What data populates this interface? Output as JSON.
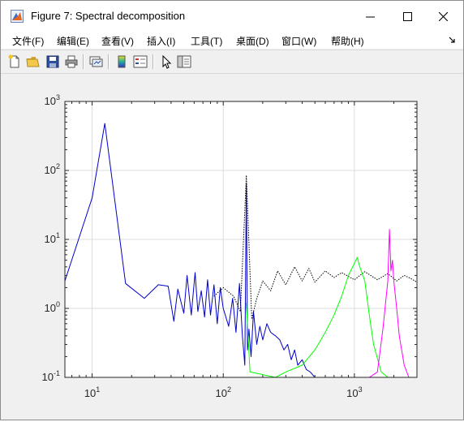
{
  "window": {
    "title": "Figure 7: Spectral decomposition",
    "icon": "matlab-figure-icon",
    "controls": [
      "minimize-icon",
      "maximize-icon",
      "close-icon"
    ]
  },
  "menu": {
    "items": [
      "文件(F)",
      "编辑(E)",
      "查看(V)",
      "插入(I)",
      "工具(T)",
      "桌面(D)",
      "窗口(W)",
      "帮助(H)"
    ]
  },
  "toolbar": {
    "buttons": [
      "new-figure-icon",
      "open-file-icon",
      "save-icon",
      "print-icon",
      "link-plot-icon",
      "insert-colorbar-icon",
      "insert-legend-icon",
      "edit-plot-icon",
      "property-inspector-icon"
    ]
  },
  "chart_data": {
    "type": "line",
    "title": "",
    "xlabel": "",
    "ylabel": "",
    "xscale": "log",
    "yscale": "log",
    "xlim": [
      6.2,
      3000
    ],
    "ylim": [
      0.1,
      1000
    ],
    "grid": true,
    "x_tick_labels": [
      "10^1",
      "10^2",
      "10^3"
    ],
    "y_tick_labels": [
      "10^-1",
      "10^0",
      "10^1",
      "10^2",
      "10^3"
    ],
    "series": [
      {
        "color": "#0000cc",
        "style": "solid",
        "x": [
          6.2,
          10,
          12.5,
          18,
          25,
          32,
          38,
          42,
          45,
          50,
          53,
          57,
          61,
          64,
          68,
          72,
          76,
          80,
          85,
          90,
          95,
          100,
          110,
          118,
          125,
          133,
          140,
          146,
          150,
          153,
          157,
          163,
          170,
          180,
          190,
          200,
          215,
          230,
          250,
          270,
          290,
          310,
          330,
          350,
          370,
          400,
          430,
          460,
          500
        ],
        "y": [
          2.5,
          40,
          480,
          2.3,
          1.4,
          2.2,
          2.1,
          0.65,
          1.9,
          0.85,
          3,
          0.8,
          3.3,
          0.9,
          1.8,
          0.75,
          2.6,
          0.8,
          2.2,
          0.6,
          2,
          1.0,
          0.55,
          1.4,
          0.45,
          2.3,
          0.4,
          0.15,
          65,
          0.25,
          0.5,
          0.2,
          0.9,
          0.3,
          0.55,
          0.35,
          0.6,
          0.45,
          0.4,
          0.35,
          0.25,
          0.3,
          0.18,
          0.25,
          0.15,
          0.18,
          0.13,
          0.12,
          0.1
        ]
      },
      {
        "color": "#000000",
        "style": "dotted",
        "x": [
          85,
          100,
          120,
          135,
          150,
          165,
          180,
          200,
          230,
          260,
          300,
          350,
          400,
          450,
          500,
          600,
          700,
          800,
          1000,
          1200,
          1500,
          1800,
          2100,
          2400,
          2700,
          3000
        ],
        "y": [
          1.5,
          2.0,
          1.5,
          0.9,
          85,
          0.7,
          1.4,
          2.5,
          1.8,
          3.5,
          2.2,
          4.0,
          2.5,
          3.8,
          2.4,
          3.5,
          2.8,
          3.3,
          2.6,
          3.4,
          2.6,
          3.2,
          2.5,
          3.0,
          2.7,
          2.4
        ]
      },
      {
        "color": "#00ff00",
        "style": "solid",
        "x": [
          150,
          160,
          250,
          300,
          400,
          500,
          600,
          700,
          800,
          900,
          1000,
          1050,
          1100,
          1200,
          1300,
          1400,
          1600,
          1800
        ],
        "y": [
          1.2,
          0.12,
          0.1,
          0.12,
          0.15,
          0.25,
          0.45,
          0.8,
          1.5,
          3.0,
          4.5,
          5.5,
          4.0,
          2.5,
          0.8,
          0.3,
          0.12,
          0.1
        ]
      },
      {
        "color": "#ff00ff",
        "style": "solid",
        "x": [
          1300,
          1500,
          1650,
          1800,
          1850,
          1900,
          1950,
          2000,
          2100,
          2200,
          2400,
          2600
        ],
        "y": [
          0.1,
          0.12,
          0.5,
          2.5,
          14,
          3.5,
          5,
          2.5,
          1.0,
          0.4,
          0.15,
          0.1
        ]
      }
    ]
  }
}
